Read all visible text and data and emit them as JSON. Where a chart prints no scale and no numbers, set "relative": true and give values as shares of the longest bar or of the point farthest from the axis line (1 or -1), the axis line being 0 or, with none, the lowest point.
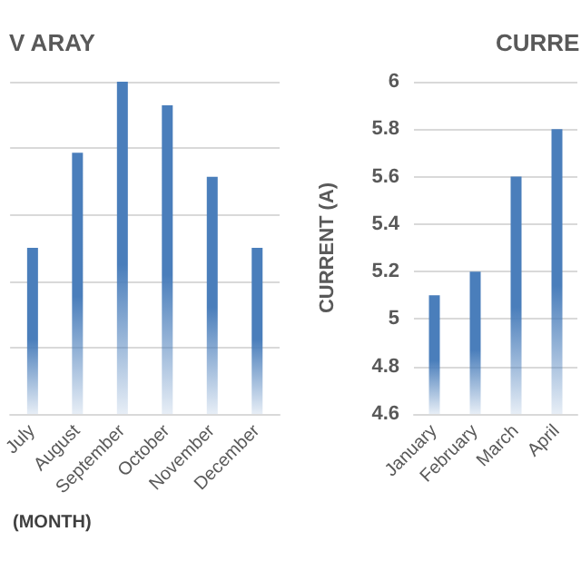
{
  "chart_data": [
    {
      "type": "bar",
      "title": "V ARAY",
      "xlabel": "(MONTH)",
      "relative": true,
      "grid": "y",
      "categories": [
        "July",
        "August",
        "September",
        "October",
        "November",
        "December"
      ],
      "series": [
        {
          "color": "#4a7ebb",
          "values": [
            0.5,
            0.786,
            1,
            0.929,
            0.714,
            0.5
          ]
        }
      ]
    },
    {
      "type": "bar",
      "title": "CURRE",
      "ylabel": "CURRENT (A)",
      "grid": "y",
      "categories": [
        "January",
        "February",
        "March",
        "April"
      ],
      "ylim": [
        4.6,
        6
      ],
      "yticks": [
        4.6,
        4.8,
        5,
        5.2,
        5.4,
        5.6,
        5.8,
        6
      ],
      "series": [
        {
          "color": "#4a7ebb",
          "values": [
            5.1,
            5.2,
            5.6,
            5.8
          ]
        }
      ]
    }
  ]
}
